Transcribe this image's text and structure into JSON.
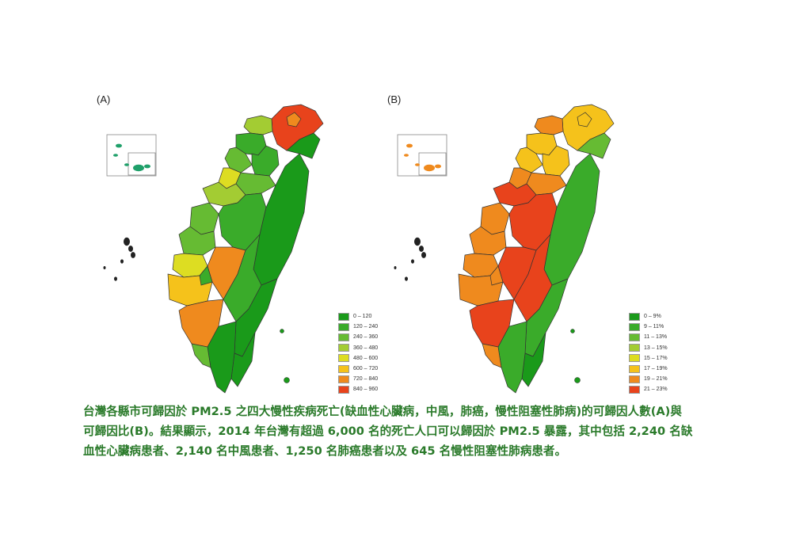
{
  "panels": [
    {
      "label": "(A)",
      "legend": [
        "0 – 120",
        "120 – 240",
        "240 – 360",
        "360 – 480",
        "480 – 600",
        "600 – 720",
        "720 – 840",
        "840 – 960"
      ],
      "scale_colors": [
        "#1a9a1a",
        "#3aab2a",
        "#66bb33",
        "#a3cc33",
        "#dddd22",
        "#f5c21b",
        "#ef8a1e",
        "#e8431c"
      ],
      "region_classes": [
        7,
        6,
        3,
        1,
        2,
        1,
        4,
        2,
        3,
        2,
        1,
        2,
        4,
        5,
        6,
        6,
        0,
        0,
        1,
        0,
        0,
        0,
        2,
        1
      ]
    },
    {
      "label": "(B)",
      "legend": [
        "0 – 9%",
        "9 – 11%",
        "11 – 13%",
        "13 – 15%",
        "15 – 17%",
        "17 – 19%",
        "19 – 21%",
        "21 – 23%"
      ],
      "scale_colors": [
        "#1a9a1a",
        "#3aab2a",
        "#66bb33",
        "#a3cc33",
        "#dddd22",
        "#f5c21b",
        "#ef8a1e",
        "#e8431c"
      ],
      "region_classes": [
        5,
        5,
        6,
        5,
        5,
        5,
        6,
        6,
        7,
        6,
        7,
        6,
        6,
        6,
        7,
        7,
        1,
        2,
        7,
        1,
        0,
        1,
        6,
        6
      ]
    }
  ],
  "caption": "台灣各縣市可歸因於 PM2.5 之四大慢性疾病死亡(缺血性心臟病，中風，肺癌，慢性阻塞性肺病)的可歸因人數(A)與可歸因比(B)。結果顯示，2014 年台灣有超過 6,000 名的死亡人口可以歸因於 PM2.5 暴露，其中包括 2,240 名缺血性心臟病患者、2,140 名中風患者、1,250 名肺癌患者以及 645 名慢性阻塞性肺病患者。"
}
